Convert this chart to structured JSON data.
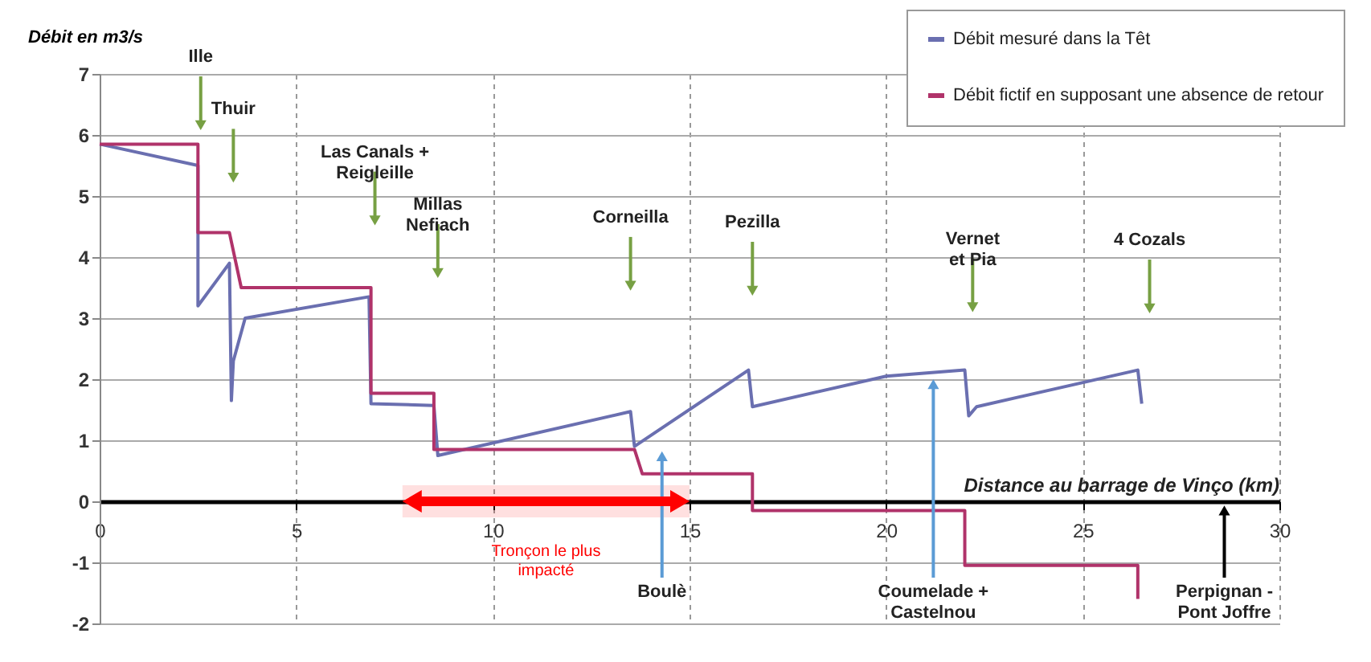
{
  "chart_data": {
    "type": "line",
    "xlabel": "Distance au barrage de  Vinço (km)",
    "ylabel": "Débit en m3/s",
    "xlim": [
      0,
      30
    ],
    "xticks": [
      0,
      5,
      10,
      15,
      20,
      25,
      30
    ],
    "ylim": [
      -2,
      7
    ],
    "yticks": [
      -2,
      -1,
      0,
      1,
      2,
      3,
      4,
      5,
      6,
      7
    ],
    "grid": true,
    "legend": "top right",
    "marker": "none",
    "line_style": "solid",
    "series": [
      {
        "name": "Débit mesuré dans la Têt",
        "color": "#6a6fb0",
        "x": [
          0,
          2.5,
          2.5,
          3.3,
          3.35,
          3.4,
          3.7,
          6.85,
          6.9,
          8.5,
          8.6,
          13.5,
          13.6,
          16.5,
          16.6,
          20,
          22,
          22.1,
          22.3,
          26.4,
          26.5
        ],
        "values": [
          5.85,
          5.5,
          3.2,
          3.9,
          1.65,
          2.3,
          3.0,
          3.35,
          1.6,
          1.57,
          0.75,
          1.47,
          0.9,
          2.15,
          1.55,
          2.05,
          2.15,
          1.4,
          1.55,
          2.15,
          1.6
        ]
      },
      {
        "name": "Débit fictif en supposant une absence de retour",
        "color": "#b0336a",
        "x": [
          0,
          2.5,
          2.5,
          3.3,
          3.6,
          6.9,
          6.9,
          8.5,
          8.5,
          13.6,
          13.8,
          16.6,
          16.6,
          22,
          22,
          26.4,
          26.4
        ],
        "values": [
          5.85,
          5.85,
          4.4,
          4.4,
          3.5,
          3.5,
          1.77,
          1.77,
          0.85,
          0.85,
          0.45,
          0.45,
          -0.15,
          -0.15,
          -1.05,
          -1.05,
          -1.6
        ]
      }
    ],
    "bands": [
      {
        "axis": "x",
        "from": 7.7,
        "to": 15,
        "label": "Tronçon le plus\nimpacté",
        "color": "#ff0000"
      }
    ],
    "annotations": [
      {
        "text": "Ille",
        "x": 2.57,
        "y": 6.16
      },
      {
        "text": "Thuir",
        "x": 3.4,
        "y": 5.3
      },
      {
        "text": "Las Canals +\nReigleille",
        "x": 7.0,
        "y": 4.6
      },
      {
        "text": "Millas\nNefiach",
        "x": 8.6,
        "y": 3.74
      },
      {
        "text": "Corneilla",
        "x": 13.5,
        "y": 3.53
      },
      {
        "text": "Pezilla",
        "x": 16.6,
        "y": 3.45
      },
      {
        "text": "Vernet\net Pia",
        "x": 22.2,
        "y": 3.18
      },
      {
        "text": "4 Cozals",
        "x": 26.7,
        "y": 3.16
      },
      {
        "text": "Boulè",
        "x": 14.3,
        "y": 0.74
      },
      {
        "text": "Coumelade +\nCastelnou",
        "x": 21.2,
        "y": 1.92
      },
      {
        "text": "Perpignan -\nPont Joffre",
        "x": 28.6,
        "y": -0.15
      }
    ]
  }
}
